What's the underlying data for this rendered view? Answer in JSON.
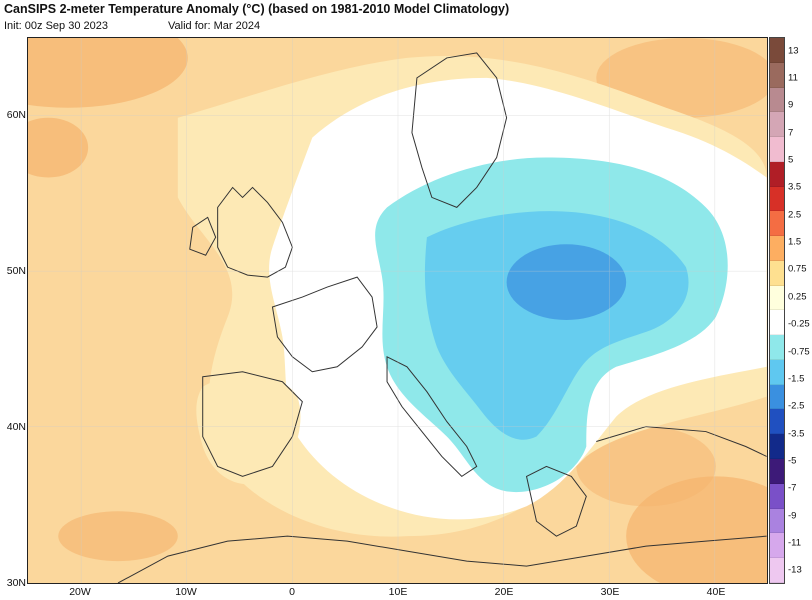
{
  "header": {
    "title": "CanSIPS 2-meter Temperature Anomaly (°C) (based on 1981-2010 Model Climatology)",
    "init": "Init: 00z Sep 30 2023",
    "valid": "Valid for: Mar 2024"
  },
  "axes": {
    "lat_labels": [
      "60N",
      "50N",
      "40N",
      "30N"
    ],
    "lon_labels": [
      "20W",
      "10W",
      "0",
      "10E",
      "20E",
      "30E",
      "40E"
    ]
  },
  "colorbar": {
    "labels": [
      "13",
      "11",
      "9",
      "7",
      "5",
      "3.5",
      "2.5",
      "1.5",
      "0.75",
      "0.25",
      "-0.25",
      "-0.75",
      "-1.5",
      "-2.5",
      "-3.5",
      "-5",
      "-7",
      "-9",
      "-11",
      "-13"
    ],
    "colors": [
      "#7a4a3a",
      "#9a6a5e",
      "#b88a90",
      "#d4a6b5",
      "#f1bcd0",
      "#b01e26",
      "#d73027",
      "#f46d43",
      "#fdae61",
      "#fee090",
      "#ffffdd",
      "#ffffff",
      "#8fe8ea",
      "#5fc8f0",
      "#3a90e0",
      "#2050c0",
      "#122a8a",
      "#3d1a78",
      "#7a50c8",
      "#aa82e0",
      "#d6a8ec",
      "#eec8f0"
    ],
    "colors_note": ""
  },
  "map_colors": {
    "warm_light": "#fde9b5",
    "warm_mid": "#fbd79c",
    "warm_strong": "#f5b36d",
    "neutral": "#ffffff",
    "cold_light": "#8fe8ea",
    "cold_mid": "#5fc8f0",
    "cold_core": "#3a90e0"
  }
}
